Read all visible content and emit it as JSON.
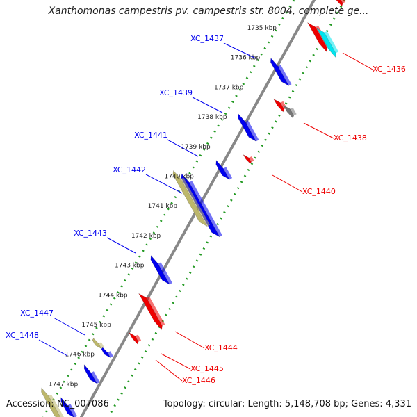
{
  "title": "Xanthomonas campestris pv. campestris str. 8004, complete ge...",
  "footer": {
    "accession": "Accession: NC_007086",
    "summary": "Topology: circular; Length: 5,148,708 bp; Genes: 4,331"
  },
  "colors": {
    "forward_gene": "#0000ee",
    "reverse_gene": "#ee0000",
    "rna": "#00e5ee",
    "pseudo": "#777777",
    "other": "#bdb76b",
    "backbone": "#888888",
    "ticks": "#229922"
  },
  "kbp_ticks": [
    "1735 kbp",
    "1736 kbp",
    "1737 kbp",
    "1738 kbp",
    "1739 kbp",
    "1740 kbp",
    "1741 kbp",
    "1742 kbp",
    "1743 kbp",
    "1744 kbp",
    "1745 kbp",
    "1746 kbp",
    "1747 kbp"
  ],
  "forward_labels": [
    "XC_1437",
    "XC_1439",
    "XC_1441",
    "XC_1442",
    "XC_1443",
    "XC_1447",
    "XC_1448"
  ],
  "reverse_labels": [
    "XC_1436",
    "XC_1438",
    "XC_1440",
    "XC_1444",
    "XC_1445",
    "XC_1446"
  ]
}
